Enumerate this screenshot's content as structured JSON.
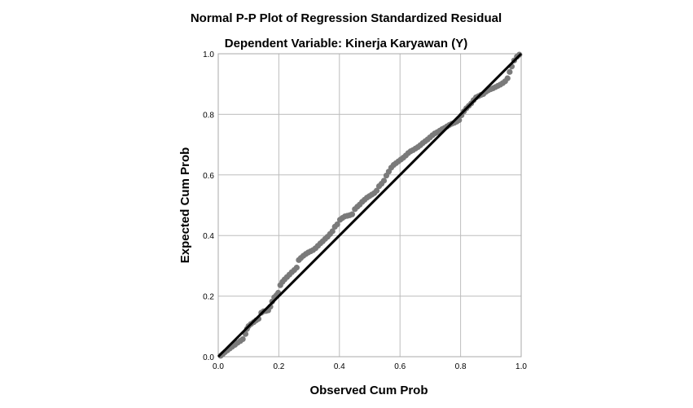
{
  "chart_data": {
    "type": "scatter",
    "title": "Normal P-P Plot of Regression Standardized Residual",
    "subtitle": "Dependent Variable: Kinerja Karyawan (Y)",
    "xlabel": "Observed Cum Prob",
    "ylabel": "Expected Cum Prob",
    "xlim": [
      0.0,
      1.0
    ],
    "ylim": [
      0.0,
      1.0
    ],
    "xticks": [
      "0.0",
      "0.2",
      "0.4",
      "0.6",
      "0.8",
      "1.0"
    ],
    "yticks": [
      "0.0",
      "0.2",
      "0.4",
      "0.6",
      "0.8",
      "1.0"
    ],
    "grid": true,
    "legend": "none",
    "reference_line": {
      "from": [
        0.0,
        0.0
      ],
      "to": [
        1.0,
        1.0
      ],
      "color": "#000000"
    },
    "marker_color": "#7a7a7a",
    "points": [
      [
        0.008,
        0.003
      ],
      [
        0.015,
        0.009
      ],
      [
        0.022,
        0.015
      ],
      [
        0.03,
        0.021
      ],
      [
        0.038,
        0.027
      ],
      [
        0.046,
        0.033
      ],
      [
        0.055,
        0.039
      ],
      [
        0.064,
        0.046
      ],
      [
        0.073,
        0.052
      ],
      [
        0.081,
        0.058
      ],
      [
        0.09,
        0.075
      ],
      [
        0.095,
        0.092
      ],
      [
        0.1,
        0.101
      ],
      [
        0.108,
        0.108
      ],
      [
        0.117,
        0.114
      ],
      [
        0.125,
        0.12
      ],
      [
        0.133,
        0.125
      ],
      [
        0.142,
        0.145
      ],
      [
        0.15,
        0.15
      ],
      [
        0.158,
        0.151
      ],
      [
        0.165,
        0.153
      ],
      [
        0.172,
        0.165
      ],
      [
        0.178,
        0.182
      ],
      [
        0.185,
        0.196
      ],
      [
        0.192,
        0.203
      ],
      [
        0.198,
        0.211
      ],
      [
        0.205,
        0.236
      ],
      [
        0.212,
        0.247
      ],
      [
        0.219,
        0.255
      ],
      [
        0.227,
        0.263
      ],
      [
        0.235,
        0.271
      ],
      [
        0.243,
        0.279
      ],
      [
        0.251,
        0.286
      ],
      [
        0.259,
        0.294
      ],
      [
        0.266,
        0.319
      ],
      [
        0.273,
        0.326
      ],
      [
        0.281,
        0.333
      ],
      [
        0.289,
        0.339
      ],
      [
        0.297,
        0.344
      ],
      [
        0.305,
        0.348
      ],
      [
        0.313,
        0.352
      ],
      [
        0.321,
        0.358
      ],
      [
        0.329,
        0.366
      ],
      [
        0.337,
        0.374
      ],
      [
        0.345,
        0.381
      ],
      [
        0.353,
        0.389
      ],
      [
        0.361,
        0.396
      ],
      [
        0.369,
        0.405
      ],
      [
        0.377,
        0.414
      ],
      [
        0.385,
        0.429
      ],
      [
        0.393,
        0.437
      ],
      [
        0.402,
        0.452
      ],
      [
        0.41,
        0.458
      ],
      [
        0.418,
        0.463
      ],
      [
        0.426,
        0.465
      ],
      [
        0.434,
        0.467
      ],
      [
        0.442,
        0.47
      ],
      [
        0.451,
        0.487
      ],
      [
        0.459,
        0.495
      ],
      [
        0.467,
        0.502
      ],
      [
        0.475,
        0.511
      ],
      [
        0.483,
        0.518
      ],
      [
        0.491,
        0.525
      ],
      [
        0.499,
        0.53
      ],
      [
        0.507,
        0.535
      ],
      [
        0.515,
        0.54
      ],
      [
        0.523,
        0.548
      ],
      [
        0.531,
        0.563
      ],
      [
        0.539,
        0.571
      ],
      [
        0.547,
        0.581
      ],
      [
        0.555,
        0.598
      ],
      [
        0.563,
        0.611
      ],
      [
        0.571,
        0.624
      ],
      [
        0.579,
        0.633
      ],
      [
        0.587,
        0.639
      ],
      [
        0.595,
        0.645
      ],
      [
        0.603,
        0.651
      ],
      [
        0.611,
        0.657
      ],
      [
        0.619,
        0.664
      ],
      [
        0.627,
        0.672
      ],
      [
        0.635,
        0.678
      ],
      [
        0.643,
        0.682
      ],
      [
        0.651,
        0.687
      ],
      [
        0.659,
        0.692
      ],
      [
        0.667,
        0.698
      ],
      [
        0.675,
        0.705
      ],
      [
        0.683,
        0.711
      ],
      [
        0.691,
        0.717
      ],
      [
        0.699,
        0.724
      ],
      [
        0.707,
        0.731
      ],
      [
        0.715,
        0.737
      ],
      [
        0.723,
        0.741
      ],
      [
        0.731,
        0.746
      ],
      [
        0.739,
        0.751
      ],
      [
        0.747,
        0.755
      ],
      [
        0.755,
        0.76
      ],
      [
        0.763,
        0.765
      ],
      [
        0.771,
        0.769
      ],
      [
        0.779,
        0.772
      ],
      [
        0.787,
        0.776
      ],
      [
        0.795,
        0.781
      ],
      [
        0.803,
        0.797
      ],
      [
        0.811,
        0.81
      ],
      [
        0.819,
        0.82
      ],
      [
        0.827,
        0.828
      ],
      [
        0.835,
        0.836
      ],
      [
        0.843,
        0.847
      ],
      [
        0.851,
        0.856
      ],
      [
        0.859,
        0.86
      ],
      [
        0.867,
        0.864
      ],
      [
        0.875,
        0.867
      ],
      [
        0.883,
        0.874
      ],
      [
        0.891,
        0.879
      ],
      [
        0.899,
        0.883
      ],
      [
        0.907,
        0.886
      ],
      [
        0.915,
        0.89
      ],
      [
        0.923,
        0.894
      ],
      [
        0.931,
        0.898
      ],
      [
        0.939,
        0.903
      ],
      [
        0.947,
        0.909
      ],
      [
        0.955,
        0.919
      ],
      [
        0.962,
        0.94
      ],
      [
        0.969,
        0.958
      ],
      [
        0.977,
        0.978
      ],
      [
        0.986,
        0.99
      ],
      [
        0.994,
        0.997
      ]
    ]
  }
}
